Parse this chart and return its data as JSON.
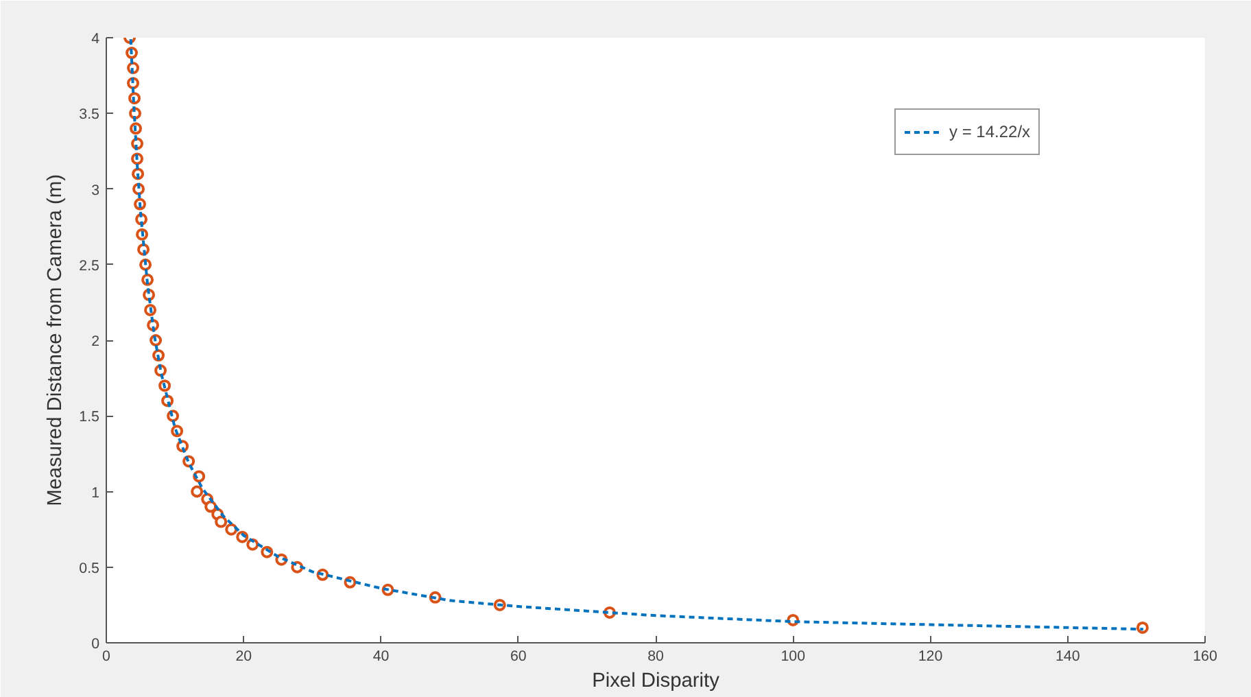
{
  "chart_data": {
    "type": "scatter",
    "xlabel": "Pixel Disparity",
    "ylabel": "Measured Distance from Camera (m)",
    "xlim": [
      0,
      160
    ],
    "ylim": [
      0,
      4
    ],
    "xticks": [
      0,
      20,
      40,
      60,
      80,
      100,
      120,
      140,
      160
    ],
    "yticks": [
      0,
      0.5,
      1,
      1.5,
      2,
      2.5,
      3,
      3.5,
      4
    ],
    "grid": false,
    "legend": "top right",
    "series": [
      {
        "color": "#d95319",
        "marker": "circle",
        "x": [
          3.4,
          3.7,
          3.9,
          3.9,
          4.1,
          4.2,
          4.3,
          4.5,
          4.5,
          4.6,
          4.7,
          4.9,
          5.1,
          5.2,
          5.4,
          5.7,
          6.0,
          6.2,
          6.4,
          6.8,
          7.2,
          7.6,
          7.9,
          8.5,
          8.9,
          9.7,
          10.3,
          11.1,
          12.0,
          13.5,
          13.2,
          14.7,
          15.2,
          16.2,
          16.7,
          18.2,
          19.8,
          21.3,
          23.4,
          25.5,
          27.8,
          31.5,
          35.5,
          41.0,
          47.9,
          57.3,
          73.3,
          100,
          150.9
        ],
        "values": [
          4.0,
          3.9,
          3.8,
          3.7,
          3.6,
          3.5,
          3.4,
          3.3,
          3.2,
          3.1,
          3.0,
          2.9,
          2.8,
          2.7,
          2.6,
          2.5,
          2.4,
          2.3,
          2.2,
          2.1,
          2.0,
          1.9,
          1.8,
          1.7,
          1.6,
          1.5,
          1.4,
          1.3,
          1.2,
          1.1,
          1.0,
          0.95,
          0.9,
          0.85,
          0.8,
          0.75,
          0.7,
          0.65,
          0.6,
          0.55,
          0.5,
          0.45,
          0.4,
          0.35,
          0.3,
          0.25,
          0.2,
          0.15,
          0.1
        ]
      },
      {
        "type": "line",
        "name": "y = 14.22/x",
        "color": "#0072bd",
        "line_style": "dashed",
        "marker": "none",
        "x": [
          3.56,
          4,
          4.5,
          5,
          6,
          7,
          8,
          10,
          12,
          14,
          17,
          20,
          25,
          30,
          40,
          50,
          60,
          80,
          100,
          120,
          151
        ],
        "values": [
          3.99,
          3.56,
          3.16,
          2.84,
          2.37,
          2.03,
          1.78,
          1.42,
          1.19,
          1.02,
          0.84,
          0.71,
          0.57,
          0.47,
          0.36,
          0.28,
          0.24,
          0.18,
          0.14,
          0.12,
          0.09
        ]
      }
    ]
  }
}
